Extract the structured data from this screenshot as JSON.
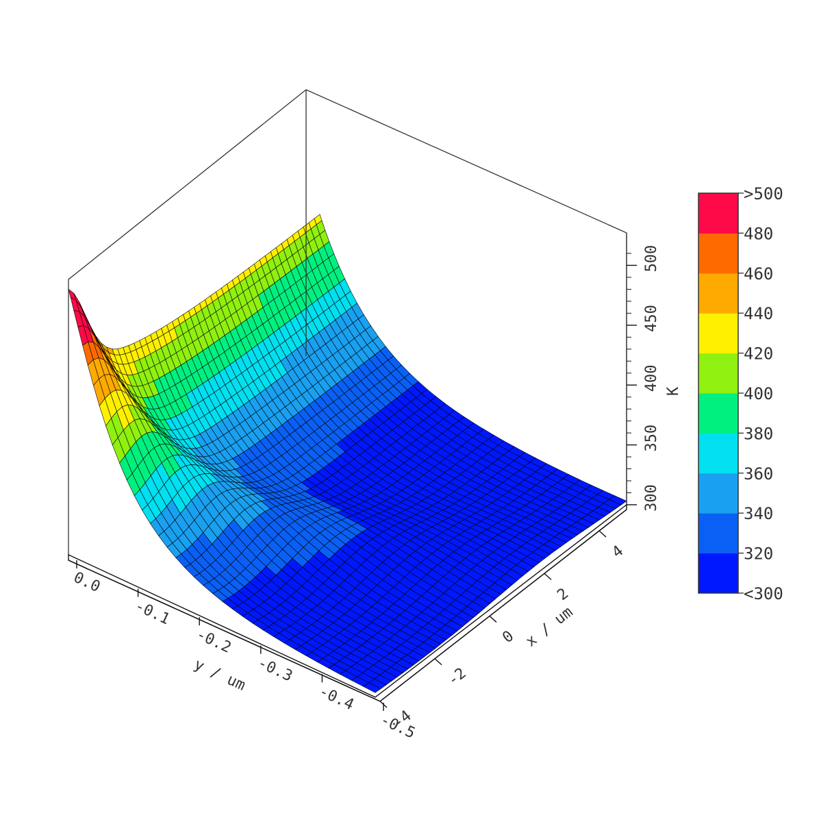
{
  "chart_data": {
    "type": "surface",
    "colorscale_unit": "K",
    "axes": {
      "y": {
        "label": "y / um",
        "range": [
          0.0,
          -0.5
        ],
        "ticks": [
          "0.0",
          "-0.1",
          "-0.2",
          "-0.3",
          "-0.4",
          "-0.5"
        ]
      },
      "x": {
        "label": "x / um",
        "range": [
          -4,
          5
        ],
        "ticks": [
          "-4",
          "-2",
          "0",
          "2",
          "4"
        ]
      },
      "z": {
        "label": "K",
        "range": [
          300,
          530
        ],
        "ticks": [
          "300",
          "350",
          "400",
          "450",
          "500"
        ]
      }
    },
    "colorbar": {
      "labels": [
        ">500",
        "480",
        "460",
        "440",
        "420",
        "400",
        "380",
        "360",
        "340",
        "320",
        "<300"
      ],
      "bins": [
        {
          "lo": 300,
          "hi": 320,
          "color": "#0018ff"
        },
        {
          "lo": 320,
          "hi": 340,
          "color": "#0a60f5"
        },
        {
          "lo": 340,
          "hi": 360,
          "color": "#1aa0f0"
        },
        {
          "lo": 360,
          "hi": 380,
          "color": "#00e0f0"
        },
        {
          "lo": 380,
          "hi": 400,
          "color": "#00f080"
        },
        {
          "lo": 400,
          "hi": 420,
          "color": "#90f010"
        },
        {
          "lo": 420,
          "hi": 440,
          "color": "#fff000"
        },
        {
          "lo": 440,
          "hi": 460,
          "color": "#ffaa00"
        },
        {
          "lo": 460,
          "hi": 480,
          "color": "#ff6a00"
        },
        {
          "lo": 480,
          "hi": 500,
          "color": "#ff0a48"
        }
      ]
    },
    "surface_profile": {
      "peak_temperature": 522,
      "peak_location": {
        "x": -4,
        "y": 0.0
      },
      "ambient_temperature": 300
    }
  }
}
